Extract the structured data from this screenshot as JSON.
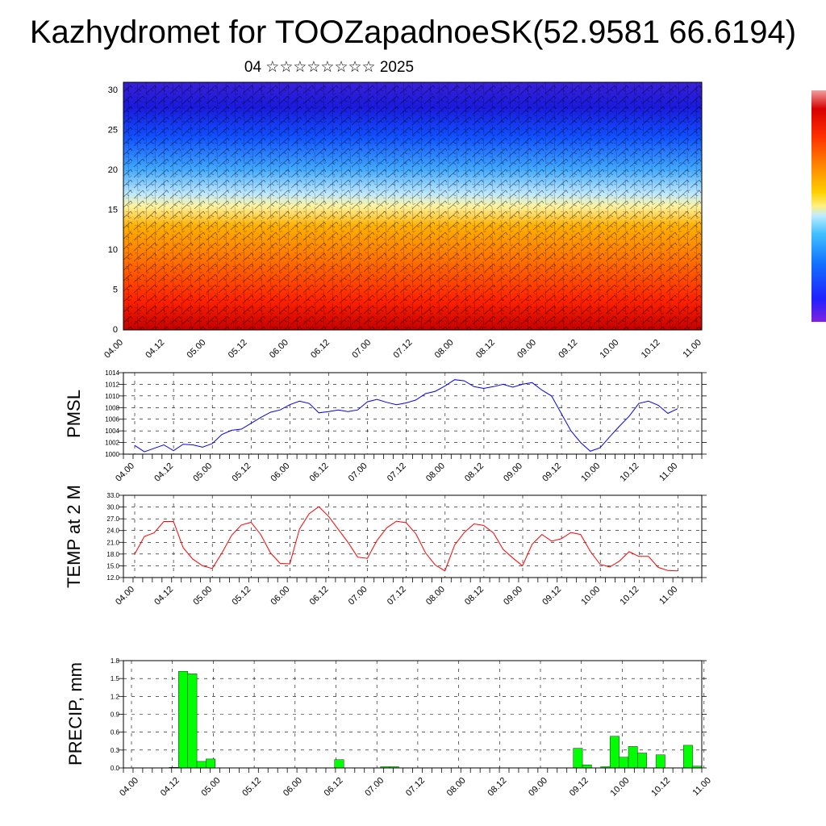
{
  "header": {
    "title": "Kazhydromet for TOOZapadnoeSK(52.9581 66.6194)",
    "subtitle": "04 ☆☆☆☆☆☆☆☆ 2025"
  },
  "time_labels": [
    "04.00",
    "04.12",
    "05.00",
    "05.12",
    "06.00",
    "06.12",
    "07.00",
    "07.12",
    "08.00",
    "08.12",
    "09.00",
    "09.12",
    "10.00",
    "10.12",
    "11.00"
  ],
  "chart_data": [
    {
      "type": "heatmap",
      "y_ticks": [
        "0",
        "5",
        "10",
        "15",
        "20",
        "25",
        "30"
      ],
      "ylim": [
        0,
        31
      ],
      "colorbar": true,
      "overlay": "wind barbs"
    },
    {
      "type": "line",
      "ylabel": "PMSL",
      "ylim": [
        1000,
        1014
      ],
      "y_ticks": [
        "1000",
        "1002",
        "1004",
        "1006",
        "1008",
        "1010",
        "1012",
        "1014"
      ],
      "color": "#0000ff",
      "values": [
        1001.5,
        1000.4,
        1001.0,
        1001.6,
        1000.6,
        1001.7,
        1001.6,
        1001.2,
        1001.8,
        1003.4,
        1004.1,
        1004.3,
        1005.3,
        1006.3,
        1007.2,
        1007.6,
        1008.5,
        1009.1,
        1008.7,
        1007.1,
        1007.3,
        1007.6,
        1007.3,
        1007.6,
        1009.0,
        1009.4,
        1008.9,
        1008.5,
        1008.8,
        1009.3,
        1010.4,
        1010.8,
        1011.7,
        1012.8,
        1012.6,
        1011.6,
        1011.3,
        1011.6,
        1012.0,
        1011.5,
        1012.0,
        1012.3,
        1011.0,
        1010.0,
        1007.0,
        1004.0,
        1002.0,
        1000.5,
        1001.1,
        1003.0,
        1004.8,
        1006.5,
        1008.7,
        1009.1,
        1008.4,
        1007.0,
        1007.8
      ]
    },
    {
      "type": "line",
      "ylabel": "TEMP at 2 M",
      "ylim": [
        12,
        33
      ],
      "y_ticks": [
        "12.0",
        "15.0",
        "18.0",
        "21.0",
        "24.0",
        "27.0",
        "30.0",
        "33.0"
      ],
      "color": "#ff0000",
      "values": [
        18.0,
        22.5,
        23.4,
        26.3,
        26.3,
        19.6,
        16.7,
        15.0,
        14.3,
        18.3,
        22.8,
        25.4,
        26.1,
        23.0,
        18.3,
        15.6,
        15.5,
        24.4,
        28.3,
        30.1,
        27.6,
        24.3,
        21.0,
        17.2,
        16.9,
        21.5,
        24.7,
        26.4,
        26.0,
        23.2,
        18.3,
        15.2,
        13.7,
        20.3,
        23.5,
        25.7,
        25.3,
        23.4,
        19.2,
        17.0,
        15.0,
        20.5,
        23.0,
        21.3,
        21.9,
        23.5,
        23.0,
        18.7,
        15.4,
        14.7,
        16.2,
        18.6,
        17.4,
        17.4,
        14.6,
        13.8,
        13.7
      ]
    },
    {
      "type": "bar",
      "ylabel": "PRECIP, mm",
      "ylim": [
        0,
        1.8
      ],
      "y_ticks": [
        "0.0",
        "0.3",
        "0.6",
        "0.9",
        "1.2",
        "1.5",
        "1.8"
      ],
      "color": "#00ff00",
      "values": [
        0,
        0,
        0,
        0,
        0,
        0.01,
        1.62,
        1.58,
        0.11,
        0.15,
        0,
        0,
        0,
        0,
        0,
        0,
        0,
        0,
        0,
        0,
        0,
        0,
        0,
        0.14,
        0,
        0,
        0,
        0,
        0.02,
        0.02,
        0,
        0,
        0,
        0,
        0,
        0,
        0,
        0,
        0,
        0,
        0,
        0,
        0,
        0,
        0,
        0,
        0,
        0,
        0,
        0.33,
        0.05,
        0,
        0.02,
        0.53,
        0.18,
        0.36,
        0.25,
        0,
        0.22,
        0,
        0,
        0.38,
        0.03
      ]
    }
  ]
}
